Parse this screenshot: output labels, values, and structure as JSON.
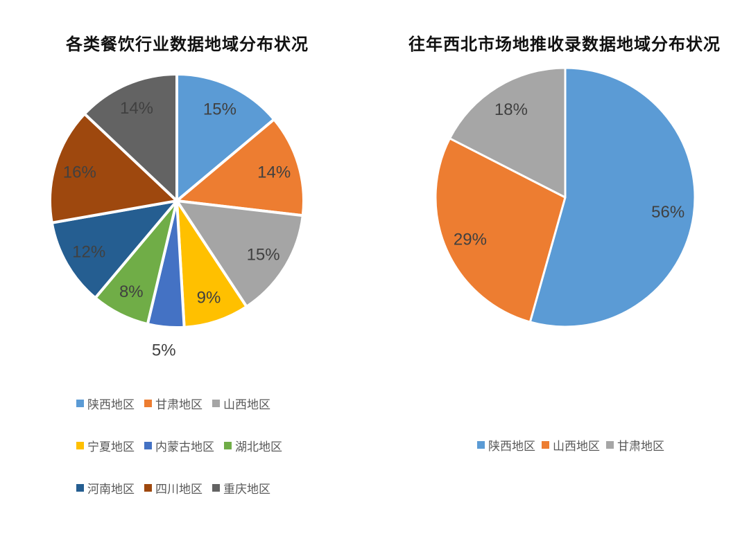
{
  "theme": {
    "background": "#ffffff",
    "title_color": "#111111",
    "data_label_color": "#404040",
    "legend_text_color": "#595959",
    "slice_border_color": "#ffffff"
  },
  "chart_data": [
    {
      "type": "pie",
      "title": "各类餐饮行业数据地域分布状况",
      "categories": [
        "陕西地区",
        "甘肃地区",
        "山西地区",
        "宁夏地区",
        "内蒙古地区",
        "湖北地区",
        "河南地区",
        "四川地区",
        "重庆地区"
      ],
      "values": [
        15,
        14,
        15,
        9,
        5,
        8,
        12,
        16,
        14
      ],
      "labels": [
        "15%",
        "14%",
        "15%",
        "9%",
        "5%",
        "8%",
        "12%",
        "16%",
        "14%"
      ],
      "colors": [
        "#5B9BD5",
        "#ED7D31",
        "#A5A5A5",
        "#FFC000",
        "#4472C4",
        "#70AD47",
        "#255E91",
        "#9E480E",
        "#636363"
      ],
      "start_angle": 0,
      "legend_columns": 3,
      "legend_position": "bottom-left",
      "notes": "data labels shown on slices; 5% label placed outside below pie"
    },
    {
      "type": "pie",
      "title": "往年西北市场地推收录数据地域分布状况",
      "categories": [
        "陕西地区",
        "山西地区",
        "甘肃地区"
      ],
      "values": [
        56,
        29,
        18
      ],
      "labels": [
        "56%",
        "29%",
        "18%"
      ],
      "colors": [
        "#5B9BD5",
        "#ED7D31",
        "#A6A6A6"
      ],
      "start_angle": 0,
      "legend_columns": 3,
      "legend_position": "bottom-center"
    }
  ]
}
